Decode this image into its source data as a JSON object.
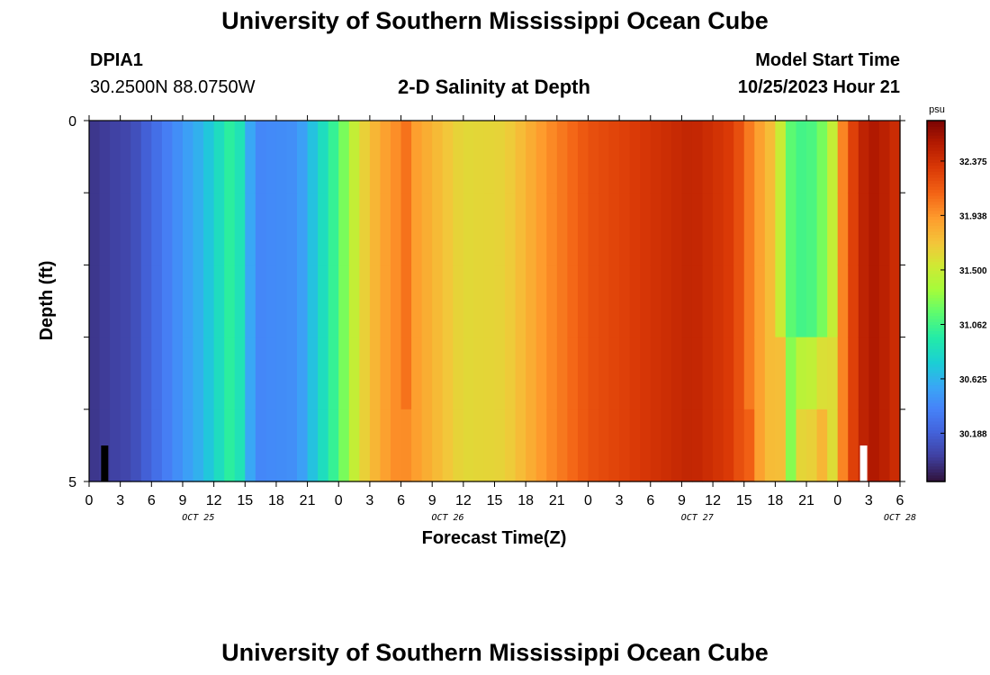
{
  "header": {
    "title": "University of Southern Mississippi Ocean Cube",
    "station_id": "DPIA1",
    "station_coords": "30.2500N  88.0750W",
    "plot_title": "2-D Salinity at Depth",
    "model_start_label": "Model Start Time",
    "model_start_value": "10/25/2023 Hour 21"
  },
  "footer": {
    "title": "University of Southern Mississippi Ocean Cube"
  },
  "chart_data": {
    "type": "heatmap",
    "title": "2-D Salinity at Depth",
    "xlabel": "Forecast Time(Z)",
    "ylabel": "Depth (ft)",
    "colorbar_label": "psu",
    "colorbar_ticks": [
      "30.188",
      "30.625",
      "31.062",
      "31.500",
      "31.938",
      "32.375"
    ],
    "colorbar_range": [
      29.8,
      32.7
    ],
    "y_ticks": [
      "0",
      "5"
    ],
    "y_range": [
      0,
      5
    ],
    "x_tick_labels": [
      "0",
      "3",
      "6",
      "9",
      "12",
      "15",
      "18",
      "21",
      "0",
      "3",
      "6",
      "9",
      "12",
      "15",
      "18",
      "21",
      "0",
      "3",
      "6",
      "9",
      "12",
      "15",
      "18",
      "21",
      "0",
      "3",
      "6"
    ],
    "date_labels": [
      {
        "text": "OCT 25",
        "hour": 10.5
      },
      {
        "text": "OCT 26",
        "hour": 34.5
      },
      {
        "text": "OCT 27",
        "hour": 58.5
      },
      {
        "text": "OCT 28",
        "hour": 78
      }
    ],
    "x_range_hours": [
      0,
      78
    ],
    "depth_levels": 5,
    "time_step_hours": 1,
    "salinity_profile": [
      [
        0,
        29.95
      ],
      [
        4,
        30.05
      ],
      [
        8,
        30.4
      ],
      [
        11,
        30.65
      ],
      [
        14,
        31.05
      ],
      [
        16,
        30.4
      ],
      [
        20,
        30.45
      ],
      [
        24,
        31.1
      ],
      [
        26,
        31.6
      ],
      [
        28,
        31.85
      ],
      [
        30,
        32.0
      ],
      [
        33,
        31.8
      ],
      [
        36,
        31.62
      ],
      [
        40,
        31.65
      ],
      [
        44,
        31.95
      ],
      [
        48,
        32.2
      ],
      [
        54,
        32.35
      ],
      [
        58,
        32.45
      ],
      [
        62,
        32.3
      ],
      [
        64,
        31.95
      ],
      [
        66,
        31.7
      ],
      [
        67,
        31.3
      ],
      [
        69,
        31.15
      ],
      [
        71,
        31.4
      ],
      [
        72,
        31.8
      ],
      [
        73,
        32.2
      ],
      [
        75,
        32.55
      ],
      [
        77,
        32.45
      ],
      [
        78,
        32.35
      ]
    ],
    "anomalies": [
      {
        "hours": [
          30,
          31
        ],
        "depth_rows": [
          0,
          1,
          2,
          3
        ],
        "delta": 0.1
      },
      {
        "hours": [
          66,
          67
        ],
        "depth_rows": [
          3,
          4
        ],
        "delta": 0.25
      },
      {
        "hours": [
          68,
          71
        ],
        "depth_rows": [
          3
        ],
        "delta": 0.25
      },
      {
        "hours": [
          68,
          71
        ],
        "depth_rows": [
          4
        ],
        "delta": 0.45
      },
      {
        "hours": [
          63,
          64
        ],
        "depth_rows": [
          4
        ],
        "delta": 0.1
      },
      {
        "hours": [
          67,
          72
        ],
        "depth_rows": [
          0,
          1,
          2
        ],
        "delta": -0.12
      }
    ],
    "markers": [
      {
        "hour": 1.5,
        "color": "#000000"
      },
      {
        "hour": 74.5,
        "color": "#ffffff"
      }
    ]
  }
}
